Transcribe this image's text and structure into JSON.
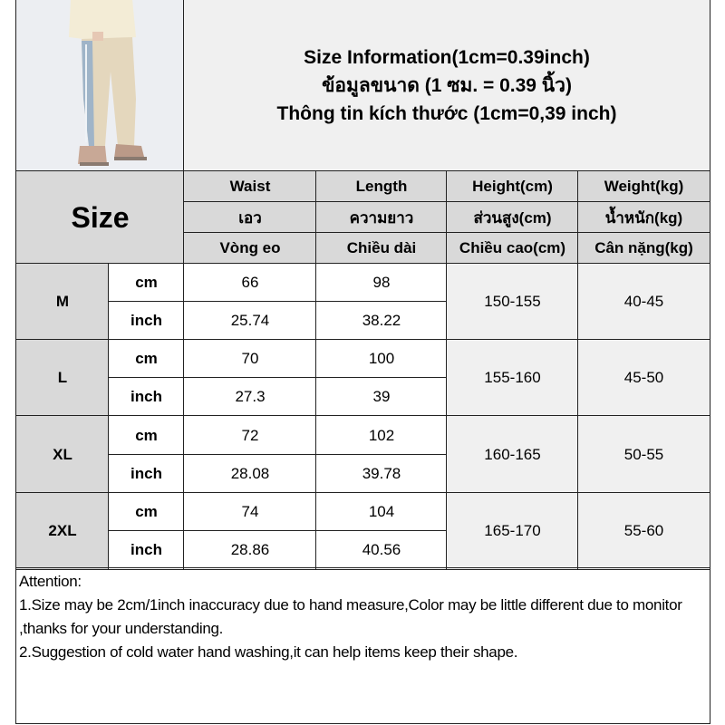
{
  "title": {
    "line1": "Size Information(1cm=0.39inch)",
    "line2": "ข้อมูลขนาด (1 ซม. = 0.39 นิ้ว)",
    "line3": "Thông tin kích thước (1cm=0,39 inch)"
  },
  "size_header": "Size",
  "columns": [
    {
      "en": "Waist",
      "th": "เอว",
      "vi": "Vòng eo"
    },
    {
      "en": "Length",
      "th": "ความยาว",
      "vi": "Chiều dài"
    },
    {
      "en": "Height(cm)",
      "th": "ส่วนสูง(cm)",
      "vi": "Chiều cao(cm)"
    },
    {
      "en": "Weight(kg)",
      "th": "น้ำหนัก(kg)",
      "vi": "Cân nặng(kg)"
    }
  ],
  "rows": [
    {
      "size": "M",
      "cm_label": "cm",
      "inch_label": "inch",
      "waist_cm": "66",
      "length_cm": "98",
      "waist_inch": "25.74",
      "length_inch": "38.22",
      "height": "150-155",
      "weight": "40-45"
    },
    {
      "size": "L",
      "cm_label": "cm",
      "inch_label": "inch",
      "waist_cm": "70",
      "length_cm": "100",
      "waist_inch": "27.3",
      "length_inch": "39",
      "height": "155-160",
      "weight": "45-50"
    },
    {
      "size": "XL",
      "cm_label": "cm",
      "inch_label": "inch",
      "waist_cm": "72",
      "length_cm": "102",
      "waist_inch": "28.08",
      "length_inch": "39.78",
      "height": "160-165",
      "weight": "50-55"
    },
    {
      "size": "2XL",
      "cm_label": "cm",
      "inch_label": "inch",
      "waist_cm": "74",
      "length_cm": "104",
      "waist_inch": "28.86",
      "length_inch": "40.56",
      "height": "165-170",
      "weight": "55-60"
    }
  ],
  "attention": {
    "heading": "Attention:",
    "note1": "1.Size may be 2cm/1inch inaccuracy due to hand measure,Color may be little different due to monitor ,thanks for your understanding.",
    "note2": "2.Suggestion of cold water hand washing,it can help items keep their shape."
  }
}
